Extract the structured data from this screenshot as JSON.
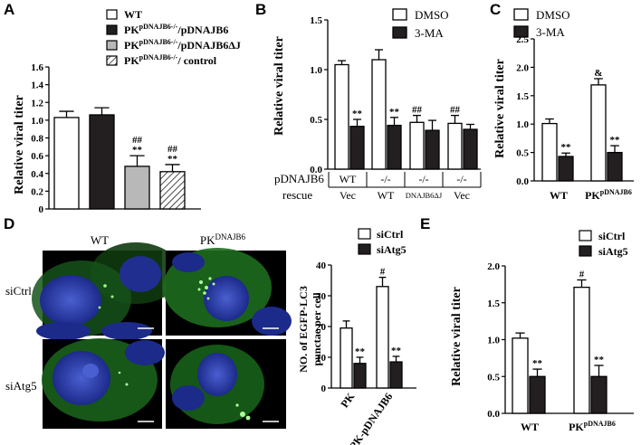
{
  "panel_labels": {
    "A": "A",
    "B": "B",
    "C": "C",
    "D": "D",
    "E": "E"
  },
  "colors": {
    "filled": "#231f20",
    "gray": "#b8b8b8",
    "open": "#ffffff",
    "micro_green": "#2fa12a",
    "micro_blue": "#2b3a9e"
  },
  "micrographs": {
    "col_labels": [
      "WT",
      "PK^DNAJB6"
    ],
    "row_labels": [
      "siCtrl",
      "siAtg5"
    ]
  },
  "table_B": {
    "row1_label": "pDNAJB6",
    "row2_label": "rescue",
    "row1": [
      "WT",
      "-/-",
      "-/-",
      "-/-"
    ],
    "row2": [
      "Vec",
      "WT",
      "DNAJB6ΔJ",
      "Vec"
    ]
  },
  "chart_data": [
    {
      "panel": "A",
      "type": "bar",
      "ylabel": "Relative viral titer",
      "ylim": [
        0,
        1.6
      ],
      "yticks": [
        "0",
        "0.2",
        "0.4",
        "0.6",
        "0.8",
        "1.0",
        "1.2",
        "1.4",
        "1.6"
      ],
      "series": [
        {
          "name": "WT",
          "value": 1.03,
          "error": 0.07,
          "fill": "open"
        },
        {
          "name": "PK^pDNAJB6-/-/pDNAJB6",
          "value": 1.06,
          "error": 0.08,
          "fill": "filled"
        },
        {
          "name": "PK^pDNAJB6-/-/pDNAJB6ΔJ",
          "value": 0.48,
          "error": 0.12,
          "fill": "gray",
          "annotation": [
            "##",
            "**"
          ]
        },
        {
          "name": "PK^pDNAJB6-/-/ control",
          "value": 0.42,
          "error": 0.08,
          "fill": "hatched",
          "annotation": [
            "##",
            "**"
          ]
        }
      ]
    },
    {
      "panel": "B",
      "type": "bar",
      "ylabel": "Relative viral titer",
      "ylim": [
        0,
        1.5
      ],
      "yticks": [
        "0.0",
        "0.5",
        "1.0",
        "1.5"
      ],
      "series": [
        {
          "name": "DMSO"
        },
        {
          "name": "3-MA"
        }
      ],
      "groups": [
        {
          "values": [
            1.05,
            0.43
          ],
          "errors": [
            0.04,
            0.07
          ],
          "annotation": [
            "",
            "**"
          ]
        },
        {
          "values": [
            1.1,
            0.44
          ],
          "errors": [
            0.1,
            0.08
          ],
          "annotation": [
            "",
            "**"
          ]
        },
        {
          "values": [
            0.47,
            0.39
          ],
          "errors": [
            0.07,
            0.1
          ],
          "annotation": [
            "##",
            ""
          ]
        },
        {
          "values": [
            0.46,
            0.4
          ],
          "errors": [
            0.08,
            0.05
          ],
          "annotation": [
            "##",
            ""
          ]
        }
      ]
    },
    {
      "panel": "C",
      "type": "bar",
      "ylabel": "Relative viral titer",
      "ylim": [
        0,
        2.5
      ],
      "yticks": [
        "0.0",
        "0.5",
        "1.0",
        "1.5",
        "2.0",
        "2.5"
      ],
      "categories": [
        "WT",
        "PK^pDNAJB6"
      ],
      "series": [
        {
          "name": "DMSO"
        },
        {
          "name": "3-MA"
        }
      ],
      "groups": [
        {
          "values": [
            1.01,
            0.43
          ],
          "errors": [
            0.08,
            0.06
          ],
          "annotation": [
            "",
            "**"
          ]
        },
        {
          "values": [
            1.69,
            0.5
          ],
          "errors": [
            0.11,
            0.12
          ],
          "annotation": [
            "&",
            "**"
          ]
        }
      ]
    },
    {
      "panel": "D",
      "type": "bar",
      "ylabel": "NO. of EGFP-LC3 punctae per cell",
      "ylim": [
        0,
        40
      ],
      "yticks": [
        "0",
        "10",
        "20",
        "30",
        "40"
      ],
      "categories": [
        "PK",
        "PK-pDNAJB6"
      ],
      "series": [
        {
          "name": "siCtrl"
        },
        {
          "name": "siAtg5"
        }
      ],
      "groups": [
        {
          "values": [
            19.5,
            8
          ],
          "errors": [
            2.3,
            2
          ],
          "annotation": [
            "",
            "**"
          ]
        },
        {
          "values": [
            33,
            8.5
          ],
          "errors": [
            3,
            1.8
          ],
          "annotation": [
            "#",
            "**"
          ]
        }
      ]
    },
    {
      "panel": "E",
      "type": "bar",
      "ylabel": "Relative viral titer",
      "ylim": [
        0,
        2.0
      ],
      "yticks": [
        "0.0",
        "0.5",
        "1.0",
        "1.5",
        "2.0"
      ],
      "categories": [
        "WT",
        "PK^pDNAJB6"
      ],
      "series": [
        {
          "name": "siCtrl"
        },
        {
          "name": "siAtg5"
        }
      ],
      "groups": [
        {
          "values": [
            1.02,
            0.5
          ],
          "errors": [
            0.07,
            0.1
          ],
          "annotation": [
            "",
            "**"
          ]
        },
        {
          "values": [
            1.71,
            0.5
          ],
          "errors": [
            0.1,
            0.15
          ],
          "annotation": [
            "#",
            "**"
          ]
        }
      ]
    }
  ]
}
